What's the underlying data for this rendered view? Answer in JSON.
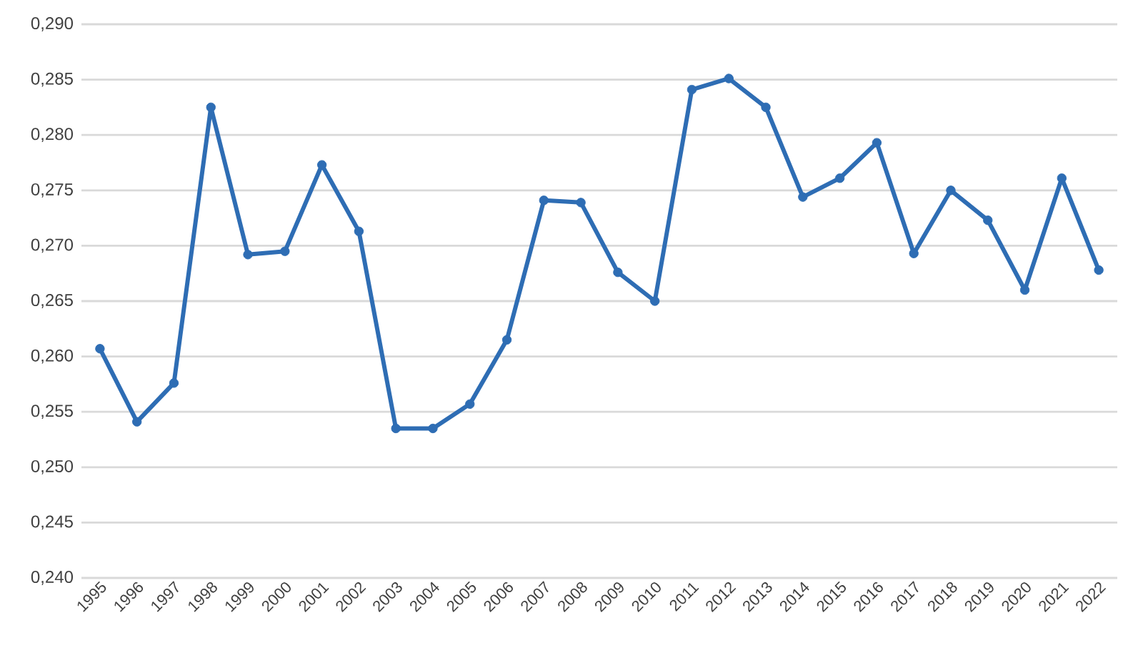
{
  "chart_data": {
    "type": "line",
    "categories": [
      "1995",
      "1996",
      "1997",
      "1998",
      "1999",
      "2000",
      "2001",
      "2002",
      "2003",
      "2004",
      "2005",
      "2006",
      "2007",
      "2008",
      "2009",
      "2010",
      "2011",
      "2012",
      "2013",
      "2014",
      "2015",
      "2016",
      "2017",
      "2018",
      "2019",
      "2020",
      "2021",
      "2022"
    ],
    "values": [
      0.2607,
      0.2541,
      0.2576,
      0.2825,
      0.2692,
      0.2695,
      0.2773,
      0.2713,
      0.2535,
      0.2535,
      0.2557,
      0.2615,
      0.2741,
      0.2739,
      0.2676,
      0.265,
      0.2841,
      0.2851,
      0.2825,
      0.2744,
      0.2761,
      0.2793,
      0.2693,
      0.275,
      0.2723,
      0.266,
      0.2761,
      0.2678
    ],
    "color": "#2e6db4",
    "ylim": [
      0.24,
      0.29
    ],
    "yticks": [
      {
        "value": 0.24,
        "label": "0,240"
      },
      {
        "value": 0.245,
        "label": "0,245"
      },
      {
        "value": 0.25,
        "label": "0,250"
      },
      {
        "value": 0.255,
        "label": "0,255"
      },
      {
        "value": 0.26,
        "label": "0,260"
      },
      {
        "value": 0.265,
        "label": "0,265"
      },
      {
        "value": 0.27,
        "label": "0,270"
      },
      {
        "value": 0.275,
        "label": "0,275"
      },
      {
        "value": 0.28,
        "label": "0,280"
      },
      {
        "value": 0.285,
        "label": "0,285"
      },
      {
        "value": 0.29,
        "label": "0,290"
      }
    ],
    "grid": "y",
    "marker": "circle",
    "line_style": "solid"
  }
}
